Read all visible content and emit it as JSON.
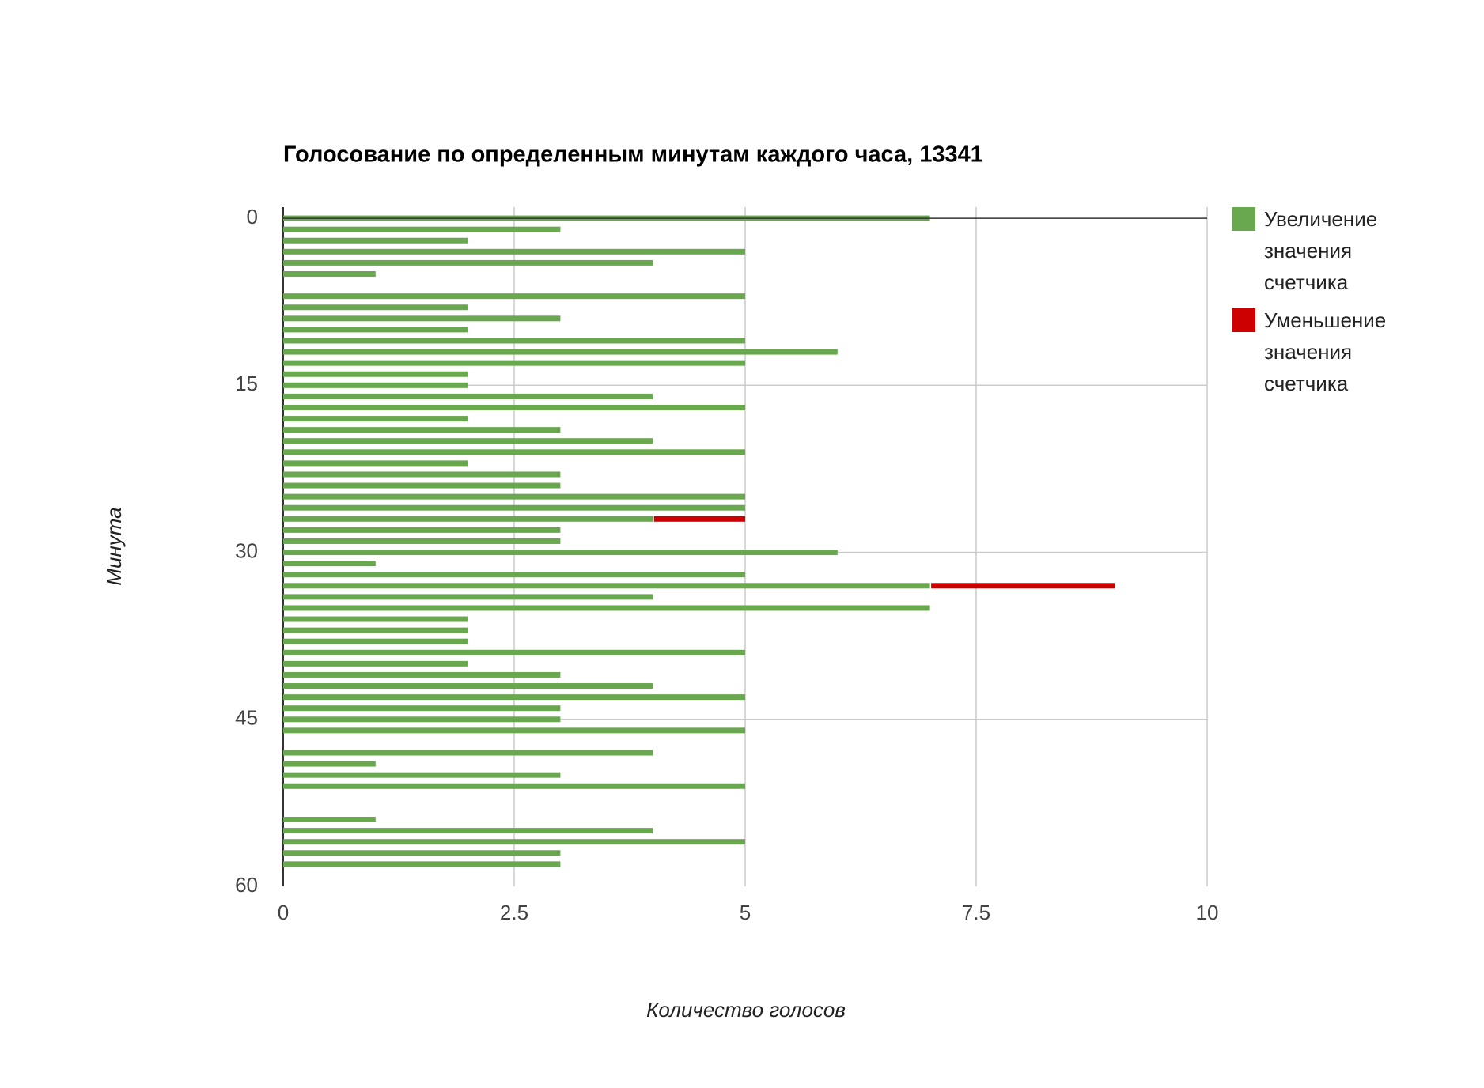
{
  "chart_data": {
    "type": "bar",
    "orientation": "horizontal",
    "stacked": true,
    "title": "Голосование по определенным минутам каждого часа, 13341",
    "x_label": "Количество голосов",
    "y_label": "Минута",
    "y": [
      0,
      1,
      2,
      3,
      4,
      5,
      6,
      7,
      8,
      9,
      10,
      11,
      12,
      13,
      14,
      15,
      16,
      17,
      18,
      19,
      20,
      21,
      22,
      23,
      24,
      25,
      26,
      27,
      28,
      29,
      30,
      31,
      32,
      33,
      34,
      35,
      36,
      37,
      38,
      39,
      40,
      41,
      42,
      43,
      44,
      45,
      46,
      47,
      48,
      49,
      50,
      51,
      52,
      53,
      54,
      55,
      56,
      57,
      58,
      59
    ],
    "series": [
      {
        "name": "Увеличение значения счетчика",
        "color": "#6aa84f",
        "values": [
          7,
          3,
          2,
          5,
          4,
          1,
          0,
          5,
          2,
          3,
          2,
          5,
          6,
          5,
          2,
          2,
          4,
          5,
          2,
          3,
          4,
          5,
          2,
          3,
          3,
          5,
          5,
          4,
          3,
          3,
          6,
          1,
          5,
          7,
          4,
          7,
          2,
          2,
          2,
          5,
          2,
          3,
          4,
          5,
          3,
          3,
          5,
          0,
          4,
          1,
          3,
          5,
          0,
          0,
          1,
          4,
          5,
          3,
          3,
          0
        ]
      },
      {
        "name": "Уменьшение значения счетчика",
        "color": "#cc0000",
        "values": [
          0,
          0,
          0,
          0,
          0,
          0,
          0,
          0,
          0,
          0,
          0,
          0,
          0,
          0,
          0,
          0,
          0,
          0,
          0,
          0,
          0,
          0,
          0,
          0,
          0,
          0,
          0,
          1,
          0,
          0,
          0,
          0,
          0,
          2,
          0,
          0,
          0,
          0,
          0,
          0,
          0,
          0,
          0,
          0,
          0,
          0,
          0,
          0,
          0,
          0,
          0,
          0,
          0,
          0,
          0,
          0,
          0,
          0,
          0,
          0
        ]
      }
    ],
    "xlim": [
      0,
      10
    ],
    "xticks": [
      0,
      2.5,
      5,
      7.5,
      10
    ],
    "ylim": [
      -1,
      60
    ],
    "yticks": [
      0,
      15,
      30,
      45,
      60
    ],
    "y_reversed": true,
    "grid": true
  }
}
